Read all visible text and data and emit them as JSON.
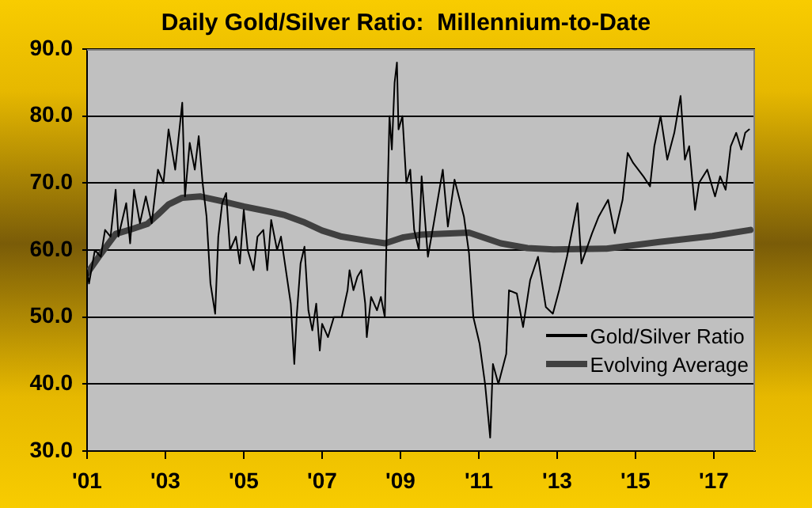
{
  "chart_data": {
    "type": "line",
    "title": "Daily Gold/Silver Ratio:  Millennium-to-Date",
    "xlim": [
      2001,
      2018.05
    ],
    "xticks": [
      {
        "value": 2001,
        "label": "'01"
      },
      {
        "value": 2003,
        "label": "'03"
      },
      {
        "value": 2005,
        "label": "'05"
      },
      {
        "value": 2007,
        "label": "'07"
      },
      {
        "value": 2009,
        "label": "'09"
      },
      {
        "value": 2011,
        "label": "'11"
      },
      {
        "value": 2013,
        "label": "'13"
      },
      {
        "value": 2015,
        "label": "'15"
      },
      {
        "value": 2017,
        "label": "'17"
      }
    ],
    "ylim": [
      30,
      90
    ],
    "yticks": [
      {
        "value": 30,
        "label": "30.0"
      },
      {
        "value": 40,
        "label": "40.0"
      },
      {
        "value": 50,
        "label": "50.0"
      },
      {
        "value": 60,
        "label": "60.0"
      },
      {
        "value": 70,
        "label": "70.0"
      },
      {
        "value": 80,
        "label": "80.0"
      },
      {
        "value": 90,
        "label": "90.0"
      }
    ],
    "grid": "y",
    "legend": "bottom right",
    "marker": "none",
    "line_style": "solid",
    "series": [
      {
        "name": "Gold/Silver Ratio",
        "color": "#000000",
        "x": [
          2001.0,
          2001.05,
          2001.2,
          2001.35,
          2001.46,
          2001.6,
          2001.73,
          2001.8,
          2002.0,
          2002.1,
          2002.2,
          2002.35,
          2002.5,
          2002.65,
          2002.81,
          2002.95,
          2003.08,
          2003.25,
          2003.43,
          2003.5,
          2003.62,
          2003.75,
          2003.85,
          2003.95,
          2004.05,
          2004.15,
          2004.27,
          2004.35,
          2004.45,
          2004.55,
          2004.65,
          2004.8,
          2004.9,
          2005.0,
          2005.1,
          2005.25,
          2005.35,
          2005.5,
          2005.6,
          2005.7,
          2005.85,
          2005.95,
          2006.05,
          2006.2,
          2006.29,
          2006.35,
          2006.45,
          2006.55,
          2006.65,
          2006.75,
          2006.85,
          2006.94,
          2007.0,
          2007.15,
          2007.3,
          2007.5,
          2007.65,
          2007.7,
          2007.8,
          2007.9,
          2008.0,
          2008.1,
          2008.14,
          2008.25,
          2008.4,
          2008.5,
          2008.6,
          2008.65,
          2008.72,
          2008.78,
          2008.85,
          2008.91,
          2008.95,
          2009.05,
          2009.15,
          2009.25,
          2009.35,
          2009.47,
          2009.54,
          2009.7,
          2009.85,
          2010.08,
          2010.21,
          2010.38,
          2010.62,
          2010.75,
          2010.86,
          2011.02,
          2011.16,
          2011.29,
          2011.36,
          2011.5,
          2011.7,
          2011.77,
          2011.97,
          2012.13,
          2012.31,
          2012.51,
          2012.71,
          2012.89,
          2013.05,
          2013.25,
          2013.52,
          2013.62,
          2013.89,
          2014.06,
          2014.3,
          2014.47,
          2014.67,
          2014.8,
          2014.94,
          2015.2,
          2015.37,
          2015.48,
          2015.64,
          2015.81,
          2015.99,
          2016.15,
          2016.26,
          2016.37,
          2016.52,
          2016.62,
          2016.83,
          2017.03,
          2017.16,
          2017.3,
          2017.43,
          2017.57,
          2017.7,
          2017.8,
          2017.9
        ],
        "values": [
          57,
          55,
          60,
          59,
          63,
          62,
          69,
          62,
          67,
          61,
          69,
          64,
          68,
          64,
          72,
          70,
          78,
          72,
          82,
          68,
          76,
          72,
          77,
          70,
          65,
          55,
          50.5,
          62,
          67,
          68.5,
          60,
          62,
          58,
          66,
          60,
          57,
          62,
          63,
          57,
          64.5,
          60,
          62,
          58,
          52,
          43,
          50,
          58,
          60.5,
          51,
          48,
          52,
          45,
          49,
          47,
          50,
          50,
          54,
          57,
          54,
          56,
          57,
          52,
          47,
          53,
          51,
          53,
          50,
          63,
          80,
          75,
          85,
          88,
          78,
          80,
          70,
          72,
          63,
          60,
          71,
          59,
          64,
          72,
          63.5,
          70.5,
          65,
          59.5,
          50,
          46,
          40,
          32,
          43,
          40,
          44.5,
          54,
          53.5,
          48.5,
          55.5,
          59,
          51.5,
          50.5,
          54,
          59,
          67,
          58,
          62.5,
          65,
          67.5,
          62.5,
          67.5,
          74.5,
          73,
          71,
          69.5,
          75.5,
          80,
          73.5,
          77.5,
          83,
          73.5,
          75.5,
          66,
          70,
          72,
          68,
          71,
          69,
          75.5,
          77.5,
          75,
          77.5,
          78
        ]
      },
      {
        "name": "Evolving Average",
        "color": "#404040",
        "x": [
          2001.0,
          2001.3,
          2001.73,
          2002.13,
          2002.54,
          2002.81,
          2003.08,
          2003.43,
          2003.89,
          2004.43,
          2005.0,
          2005.68,
          2006.05,
          2006.52,
          2007.0,
          2007.5,
          2008.14,
          2008.61,
          2009.08,
          2009.54,
          2010.75,
          2011.56,
          2012.24,
          2012.91,
          2014.26,
          2015.61,
          2016.96,
          2017.93
        ],
        "values": [
          56.5,
          59,
          62.4,
          63.1,
          63.9,
          65.3,
          66.8,
          67.8,
          68,
          67.3,
          66.5,
          65.7,
          65.2,
          64.2,
          62.9,
          62,
          61.4,
          61,
          61.9,
          62.3,
          62.6,
          61,
          60.3,
          60.1,
          60.2,
          61.2,
          62.1,
          63
        ]
      }
    ]
  }
}
